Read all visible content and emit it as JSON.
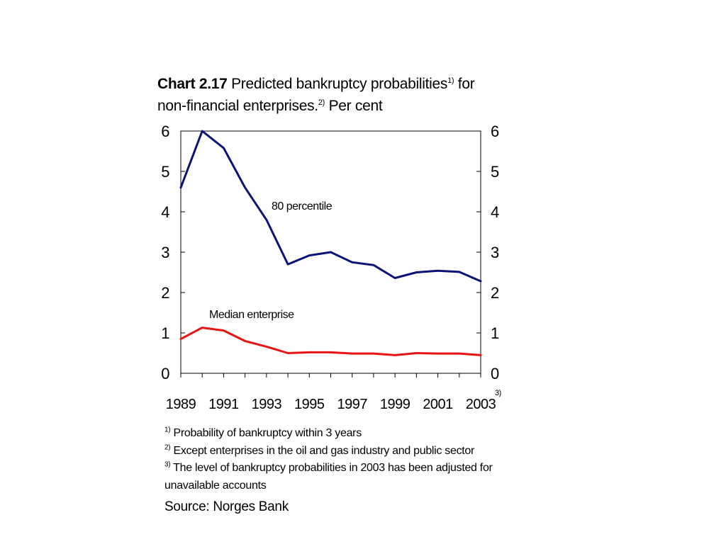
{
  "title": {
    "chart_no": "Chart 2.17",
    "text_1": " Predicted bankruptcy probabilities",
    "sup_1": "1)",
    "text_2": " for",
    "text_3": "non-financial enterprises.",
    "sup_2": "2)",
    "text_4": " Per cent"
  },
  "chart_data": {
    "type": "line",
    "x": [
      1989,
      1990,
      1991,
      1992,
      1993,
      1994,
      1995,
      1996,
      1997,
      1998,
      1999,
      2000,
      2001,
      2002,
      2003
    ],
    "x_tick_labels": [
      "1989",
      "1991",
      "1993",
      "1995",
      "1997",
      "1999",
      "2001",
      "2003"
    ],
    "x_tick_label_note": "3)",
    "ylim": [
      0,
      6
    ],
    "y_ticks": [
      0,
      1,
      2,
      3,
      4,
      5,
      6
    ],
    "y_axis": "both sides",
    "grid": false,
    "series": [
      {
        "name": "80 percentile",
        "color": "#0a1478",
        "values": [
          4.6,
          6.0,
          5.58,
          4.6,
          3.8,
          2.7,
          2.92,
          3.0,
          2.75,
          2.68,
          2.36,
          2.5,
          2.54,
          2.51,
          2.28
        ]
      },
      {
        "name": "Median enterprise",
        "color": "#e81414",
        "values": [
          0.85,
          1.13,
          1.06,
          0.8,
          0.66,
          0.5,
          0.52,
          0.52,
          0.49,
          0.49,
          0.45,
          0.5,
          0.49,
          0.49,
          0.45
        ]
      }
    ]
  },
  "notes": [
    {
      "mark": "1)",
      "text": " Probability of bankruptcy within 3 years"
    },
    {
      "mark": "2)",
      "text": " Except enterprises in the oil and gas industry and public sector"
    },
    {
      "mark": "3)",
      "text": " The level of bankruptcy probabilities in 2003 has been adjusted for unavailable accounts"
    }
  ],
  "source": "Source: Norges Bank"
}
